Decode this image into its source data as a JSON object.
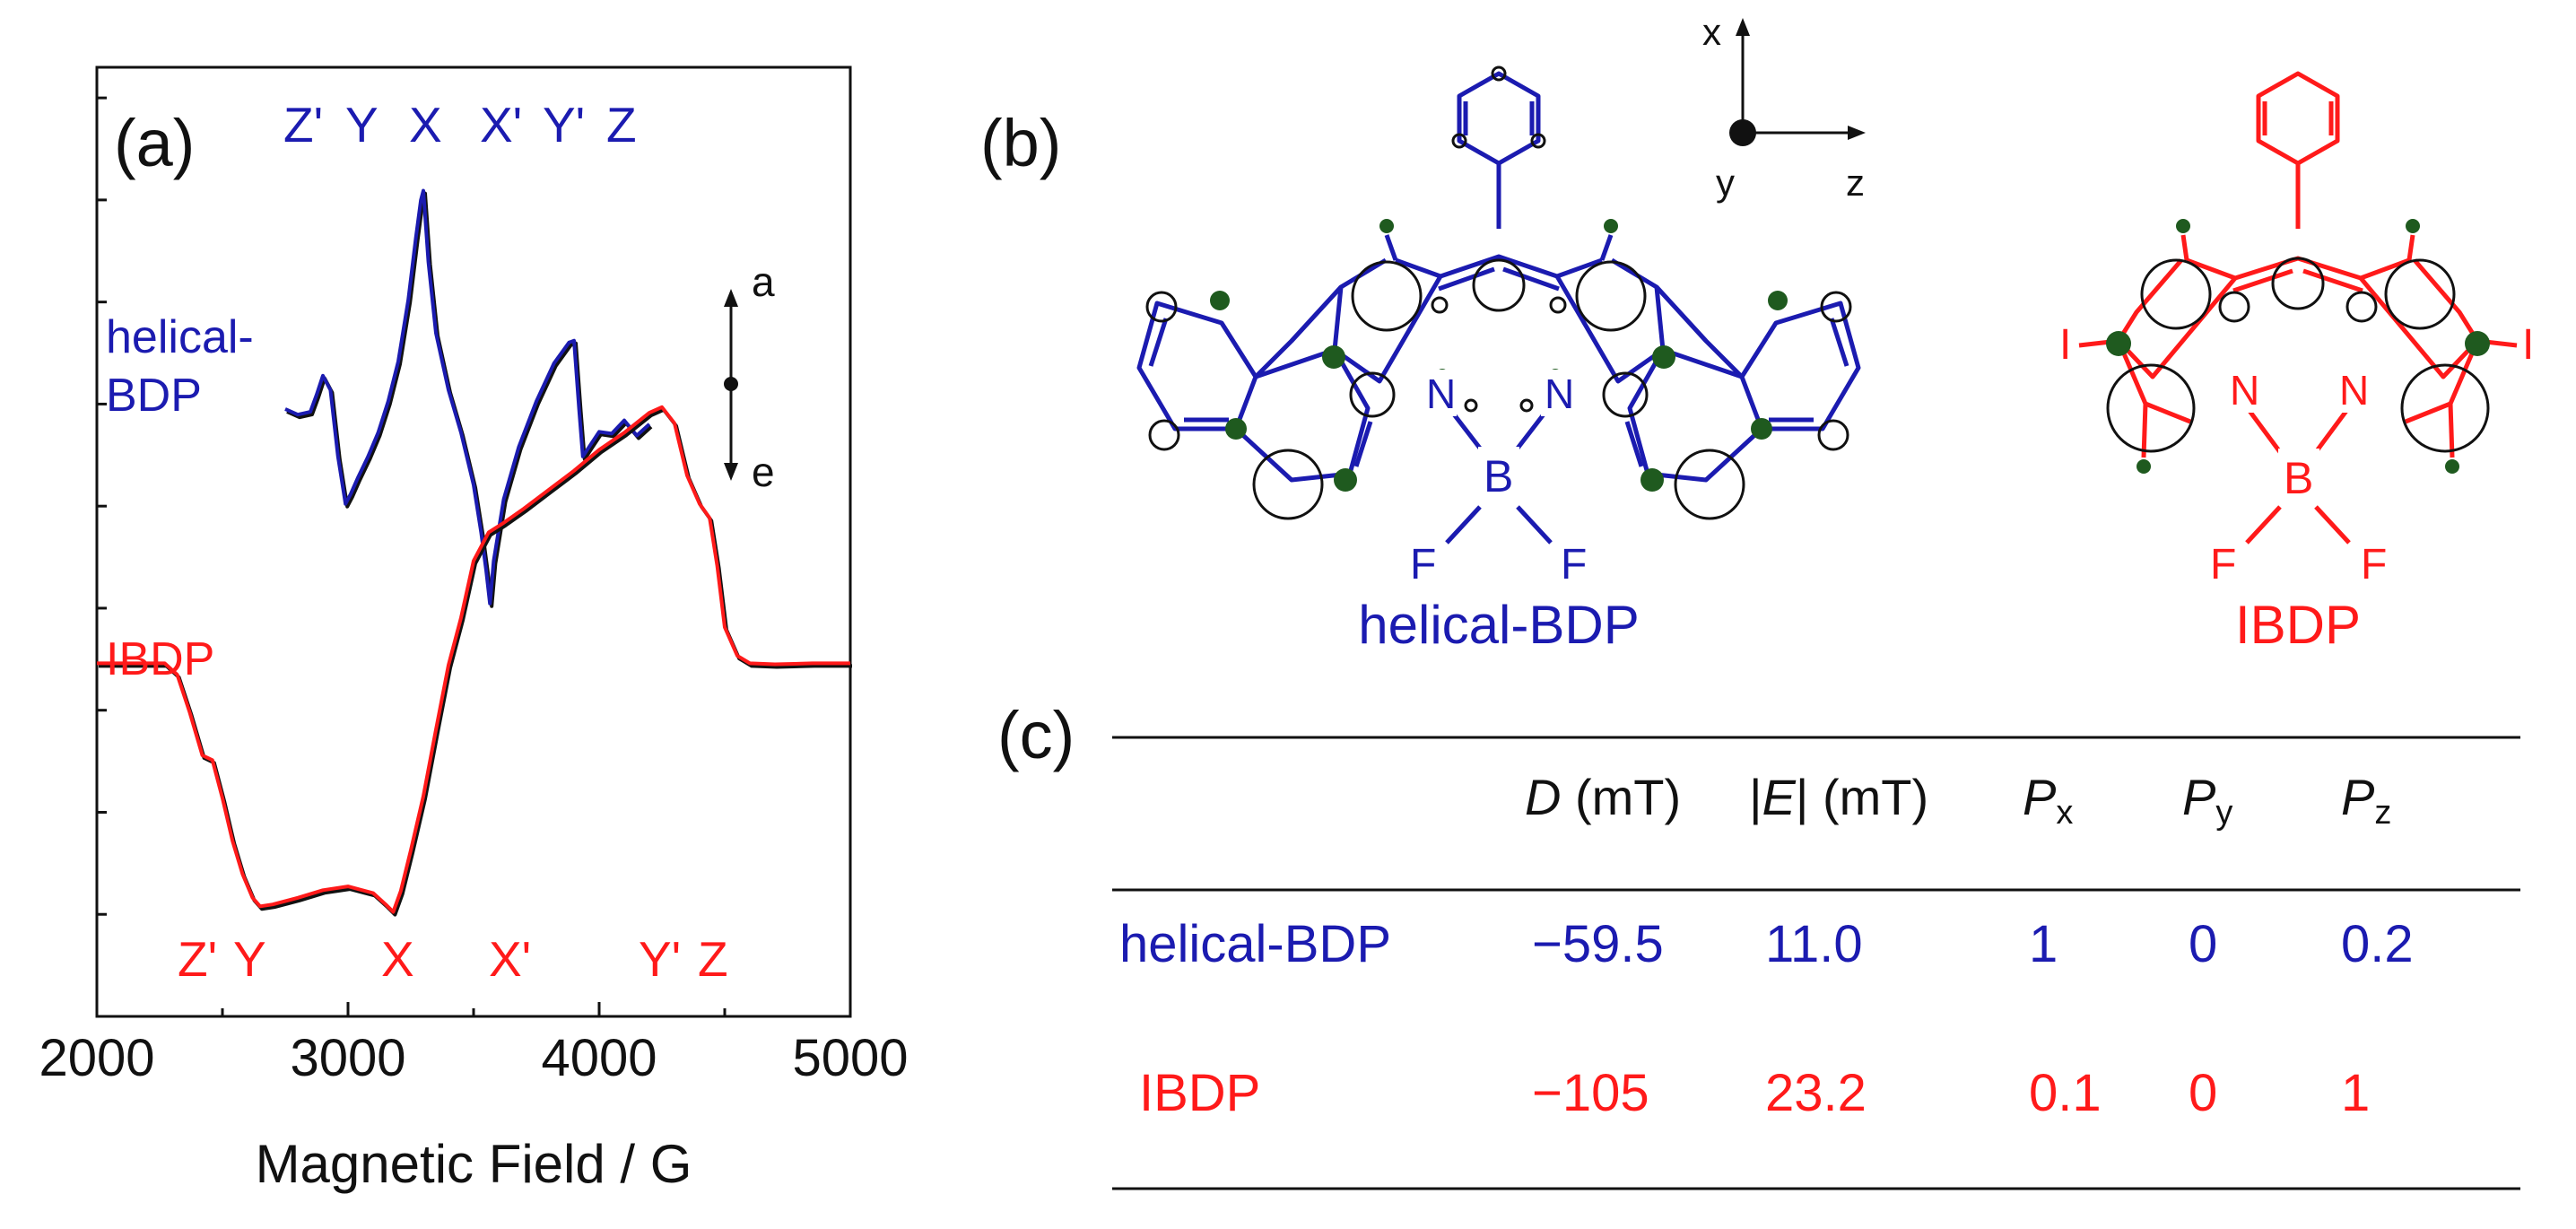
{
  "colors": {
    "blue": "#1b1bb0",
    "red": "#ff1a1a",
    "black": "#111111",
    "green": "#1f5a1f"
  },
  "panel_a": {
    "label": "(a)"
  },
  "panel_b": {
    "label": "(b)"
  },
  "panel_c": {
    "label": "(c)"
  },
  "chart_data": {
    "type": "line",
    "title": "",
    "xlabel": "Magnetic Field / G",
    "ylabel": "",
    "xlim": [
      2000,
      5000
    ],
    "xticks": [
      "2000",
      "3000",
      "4000",
      "5000"
    ],
    "ylim": [
      0,
      1
    ],
    "series": [
      {
        "name": "helical-BDP",
        "color": "#1b1bb0",
        "label_lines": [
          "helical-",
          "BDP"
        ],
        "x": [
          2750,
          2800,
          2850,
          2875,
          2900,
          2930,
          2960,
          2990,
          3010,
          3040,
          3080,
          3120,
          3160,
          3200,
          3240,
          3270,
          3290,
          3300,
          3320,
          3350,
          3400,
          3450,
          3500,
          3530,
          3550,
          3565,
          3580,
          3620,
          3680,
          3750,
          3820,
          3880,
          3900,
          3920,
          3935,
          3960,
          4000,
          4050,
          4100,
          4150,
          4200
        ],
        "y": [
          0.64,
          0.634,
          0.637,
          0.655,
          0.675,
          0.66,
          0.59,
          0.54,
          0.55,
          0.568,
          0.59,
          0.615,
          0.648,
          0.69,
          0.755,
          0.82,
          0.86,
          0.87,
          0.795,
          0.72,
          0.66,
          0.615,
          0.56,
          0.51,
          0.47,
          0.435,
          0.48,
          0.545,
          0.6,
          0.648,
          0.688,
          0.71,
          0.712,
          0.64,
          0.59,
          0.6,
          0.616,
          0.614,
          0.628,
          0.612,
          0.624
        ]
      },
      {
        "name": "IBDP",
        "color": "#ff1a1a",
        "label_lines": [
          "IBDP"
        ],
        "x": [
          2000,
          2150,
          2270,
          2320,
          2370,
          2420,
          2460,
          2500,
          2540,
          2580,
          2620,
          2650,
          2700,
          2800,
          2900,
          3000,
          3100,
          3150,
          3180,
          3210,
          3250,
          3300,
          3350,
          3400,
          3450,
          3500,
          3560,
          3620,
          3700,
          3800,
          3900,
          4000,
          4100,
          4200,
          4250,
          4300,
          4350,
          4400,
          4440,
          4470,
          4500,
          4550,
          4600,
          4700,
          4850,
          5000
        ],
        "y": [
          0.372,
          0.372,
          0.372,
          0.36,
          0.32,
          0.275,
          0.27,
          0.23,
          0.185,
          0.15,
          0.125,
          0.116,
          0.118,
          0.125,
          0.133,
          0.137,
          0.13,
          0.118,
          0.11,
          0.132,
          0.175,
          0.232,
          0.302,
          0.37,
          0.42,
          0.48,
          0.51,
          0.52,
          0.535,
          0.555,
          0.575,
          0.597,
          0.615,
          0.636,
          0.642,
          0.625,
          0.57,
          0.54,
          0.525,
          0.475,
          0.41,
          0.38,
          0.372,
          0.371,
          0.372,
          0.372
        ]
      }
    ],
    "annotations_top": [
      "Z'",
      "Y",
      "X",
      "X'",
      "Y'",
      "Z"
    ],
    "annotations_bottom": [
      "Z'",
      "Y",
      "X",
      "X'",
      "Y'",
      "Z"
    ],
    "phase_axis": {
      "top": "a",
      "bottom": "e"
    }
  },
  "molecules": {
    "axes": {
      "x": "x",
      "y": "y",
      "z": "z"
    },
    "helical_bdp": {
      "name": "helical-BDP",
      "n1": "N",
      "n2": "N",
      "b": "B",
      "f1": "F",
      "f2": "F"
    },
    "ibdp": {
      "name": "IBDP",
      "n1": "N",
      "n2": "N",
      "b": "B",
      "f1": "F",
      "f2": "F",
      "i1": "I",
      "i2": "I"
    }
  },
  "table": {
    "headers": {
      "d_sym": "D",
      "d_unit": " (mT)",
      "e_bar1": "|",
      "e_sym": "E",
      "e_bar2": "|",
      "e_unit": " (mT)",
      "px": "P",
      "px_sub": "x",
      "py": "P",
      "py_sub": "y",
      "pz": "P",
      "pz_sub": "z"
    },
    "rows": [
      {
        "name": "helical-BDP",
        "D": "−59.5",
        "E": "11.0",
        "Px": "1",
        "Py": "0",
        "Pz": "0.2",
        "color": "#1b1bb0"
      },
      {
        "name": "IBDP",
        "D": "−105",
        "E": "23.2",
        "Px": "0.1",
        "Py": "0",
        "Pz": "1",
        "color": "#ff1a1a"
      }
    ]
  }
}
